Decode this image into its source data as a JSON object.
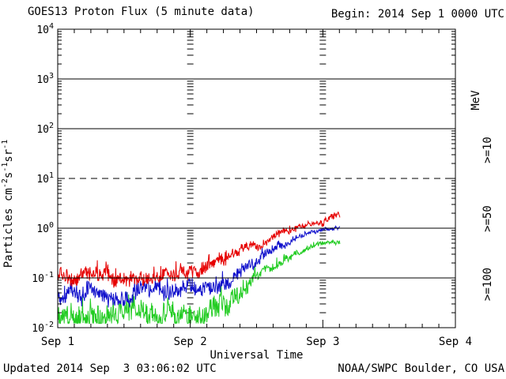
{
  "header": {
    "title": "GOES13 Proton Flux (5 minute data)",
    "begin_label": "Begin: 2014 Sep 1 0000 UTC"
  },
  "footer": {
    "updated": "Updated 2014 Sep  3 03:06:02 UTC",
    "source": "NOAA/SWPC Boulder, CO USA"
  },
  "axes": {
    "x_label": "Universal Time",
    "y_label_parts": [
      {
        "t": "Particles cm",
        "sup": false
      },
      {
        "t": "-2",
        "sup": true
      },
      {
        "t": "s",
        "sup": false
      },
      {
        "t": "-1",
        "sup": true
      },
      {
        "t": "sr",
        "sup": false
      },
      {
        "t": "-1",
        "sup": true
      }
    ],
    "right_unit_label": "MeV",
    "axis_color": "#000000"
  },
  "chart_data": {
    "type": "line",
    "title": "GOES13 Proton Flux (5 minute data)",
    "xlabel": "Universal Time",
    "ylabel": "Particles cm^-2 s^-1 sr^-1",
    "x_ticks": [
      "Sep 1",
      "Sep 2",
      "Sep 3",
      "Sep 4"
    ],
    "x_range_days": [
      0,
      3
    ],
    "x_start_label": "2014 Sep 1 0000 UTC",
    "sample_minutes": 5,
    "ylim": [
      0.01,
      10000
    ],
    "y_scale": "log",
    "y_decades": [
      4,
      3,
      2,
      1,
      0,
      -1,
      -2
    ],
    "gridlines": {
      "solid_decades": [
        3,
        2,
        0,
        -1
      ],
      "dashed_decades": [
        1
      ]
    },
    "grid_color": "#000000",
    "series": [
      {
        "name": ">=10 MeV",
        "label": ">=10",
        "color": "#e60000",
        "end_day": 2.13,
        "label_center_y": 190,
        "trend_points": [
          [
            0,
            0.105
          ],
          [
            0.5,
            0.105
          ],
          [
            0.95,
            0.12
          ],
          [
            1.1,
            0.14
          ],
          [
            1.25,
            0.22
          ],
          [
            1.4,
            0.35
          ],
          [
            1.55,
            0.52
          ],
          [
            1.7,
            0.78
          ],
          [
            1.85,
            1.05
          ],
          [
            2.0,
            1.25
          ],
          [
            2.05,
            1.45
          ],
          [
            2.13,
            1.9
          ]
        ],
        "noise_log10": [
          [
            0,
            0.13
          ],
          [
            1.0,
            0.13
          ],
          [
            1.3,
            0.1
          ],
          [
            1.6,
            0.07
          ],
          [
            1.9,
            0.055
          ],
          [
            2.13,
            0.06
          ]
        ]
      },
      {
        "name": ">=50 MeV",
        "label": ">=50",
        "color": "#1111cc",
        "end_day": 2.13,
        "label_center_y": 277,
        "trend_points": [
          [
            0,
            0.05
          ],
          [
            0.5,
            0.048
          ],
          [
            1.0,
            0.055
          ],
          [
            1.15,
            0.07
          ],
          [
            1.3,
            0.1
          ],
          [
            1.45,
            0.17
          ],
          [
            1.6,
            0.33
          ],
          [
            1.75,
            0.55
          ],
          [
            1.9,
            0.8
          ],
          [
            2.0,
            0.95
          ],
          [
            2.13,
            1.0
          ]
        ],
        "noise_log10": [
          [
            0,
            0.16
          ],
          [
            1.0,
            0.16
          ],
          [
            1.3,
            0.13
          ],
          [
            1.6,
            0.07
          ],
          [
            1.9,
            0.035
          ],
          [
            2.13,
            0.035
          ]
        ]
      },
      {
        "name": ">=100 MeV",
        "label": ">=100",
        "color": "#22cc22",
        "end_day": 2.13,
        "label_center_y": 360,
        "trend_points": [
          [
            0,
            0.021
          ],
          [
            0.5,
            0.02
          ],
          [
            1.0,
            0.022
          ],
          [
            1.2,
            0.028
          ],
          [
            1.35,
            0.045
          ],
          [
            1.5,
            0.09
          ],
          [
            1.65,
            0.19
          ],
          [
            1.8,
            0.33
          ],
          [
            1.95,
            0.48
          ],
          [
            2.05,
            0.53
          ],
          [
            2.13,
            0.55
          ]
        ],
        "noise_log10": [
          [
            0,
            0.22
          ],
          [
            1.0,
            0.22
          ],
          [
            1.3,
            0.18
          ],
          [
            1.6,
            0.08
          ],
          [
            1.9,
            0.04
          ],
          [
            2.13,
            0.04
          ]
        ]
      }
    ]
  }
}
